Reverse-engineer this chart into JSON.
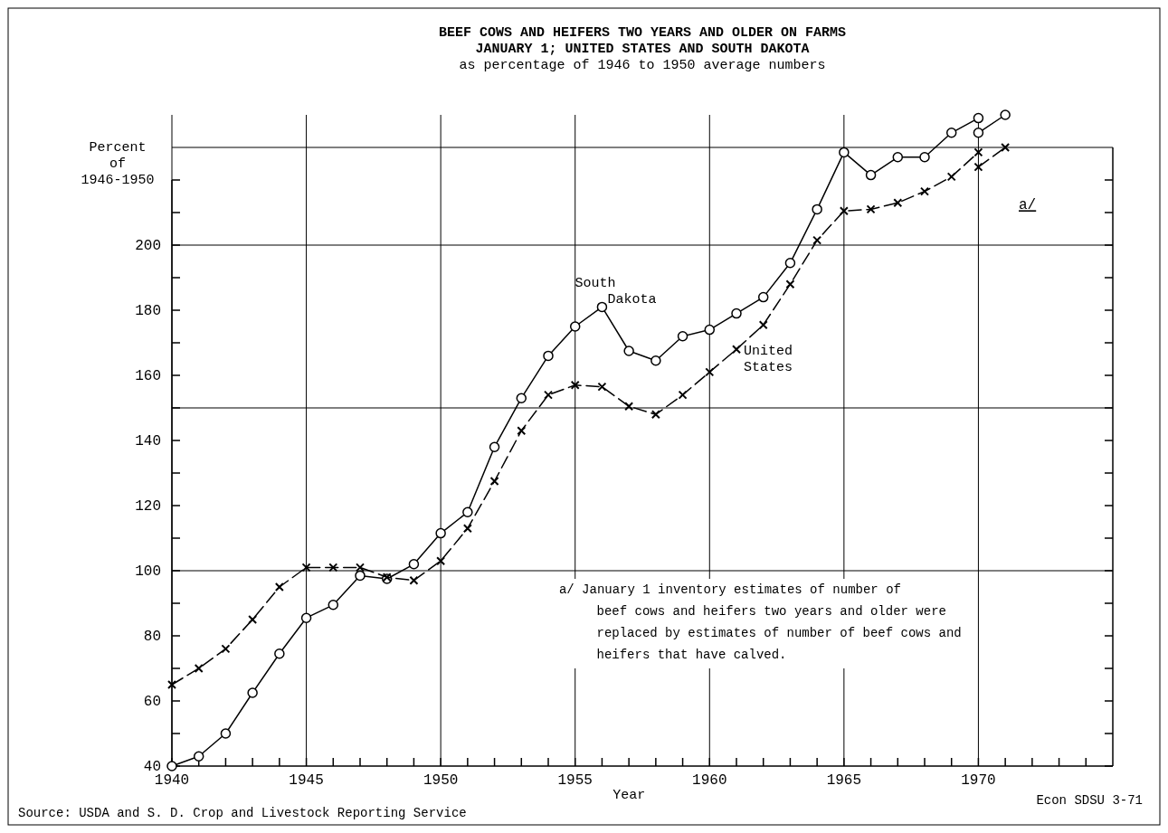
{
  "chart_data": {
    "type": "line",
    "title": "BEEF COWS AND HEIFERS TWO YEARS AND OLDER ON FARMS\nJANUARY 1; UNITED STATES AND SOUTH DAKOTA",
    "subtitle": "as percentage of 1946 to 1950 average numbers",
    "xlabel": "Year",
    "ylabel": "Percent\nof\n1946-1950",
    "xlim": [
      1940,
      1975
    ],
    "xticks": [
      1940,
      {
        "value": 1941,
        "label": null
      },
      {
        "value": 1942,
        "label": null
      },
      {
        "value": 1943,
        "label": null
      },
      {
        "value": 1944,
        "label": null
      },
      1945,
      {
        "value": 1946,
        "label": null
      },
      {
        "value": 1947,
        "label": null
      },
      {
        "value": 1948,
        "label": null
      },
      {
        "value": 1949,
        "label": null
      },
      1950,
      {
        "value": 1951,
        "label": null
      },
      {
        "value": 1952,
        "label": null
      },
      {
        "value": 1953,
        "label": null
      },
      {
        "value": 1954,
        "label": null
      },
      1955,
      {
        "value": 1956,
        "label": null
      },
      {
        "value": 1957,
        "label": null
      },
      {
        "value": 1958,
        "label": null
      },
      {
        "value": 1959,
        "label": null
      },
      1960,
      {
        "value": 1961,
        "label": null
      },
      {
        "value": 1962,
        "label": null
      },
      {
        "value": 1963,
        "label": null
      },
      {
        "value": 1964,
        "label": null
      },
      1965,
      {
        "value": 1966,
        "label": null
      },
      {
        "value": 1967,
        "label": null
      },
      {
        "value": 1968,
        "label": null
      },
      {
        "value": 1969,
        "label": null
      },
      1970,
      {
        "value": 1971,
        "label": null
      },
      {
        "value": 1972,
        "label": null
      },
      {
        "value": 1973,
        "label": null
      },
      {
        "value": 1974,
        "label": null
      }
    ],
    "ylim": [
      40,
      240
    ],
    "yticks": [
      40,
      {
        "value": 50,
        "label": null
      },
      60,
      {
        "value": 70,
        "label": null
      },
      80,
      {
        "value": 90,
        "label": null
      },
      100,
      {
        "value": 110,
        "label": null
      },
      120,
      {
        "value": 130,
        "label": null
      },
      140,
      {
        "value": 150,
        "label": null
      },
      160,
      {
        "value": 170,
        "label": null
      },
      180,
      {
        "value": 190,
        "label": null
      },
      200,
      {
        "value": 210,
        "label": null
      },
      {
        "value": 220,
        "label": null
      }
    ],
    "grid": "x",
    "ref_lines": [
      {
        "axis": "y",
        "value": 100,
        "color": "#000000"
      },
      {
        "axis": "y",
        "value": 150,
        "color": "#000000"
      },
      {
        "axis": "y",
        "value": 200,
        "color": "#000000"
      },
      {
        "axis": "y",
        "value": 230,
        "color": "#000000"
      }
    ],
    "series": [
      {
        "name": "South Dakota",
        "color": "#000000",
        "marker": "circle",
        "line_style": "solid",
        "x": [
          1940,
          1941,
          1942,
          1943,
          1944,
          1945,
          1946,
          1947,
          1948,
          1949,
          1950,
          1951,
          1952,
          1953,
          1954,
          1955,
          1956,
          1957,
          1958,
          1959,
          1960,
          1961,
          1962,
          1963,
          1964,
          1965,
          1966,
          1967,
          1968,
          1969,
          1970
        ],
        "values": [
          40,
          43,
          50,
          62.5,
          74.5,
          85.5,
          89.5,
          98.5,
          97.5,
          102,
          111.5,
          118,
          138,
          153,
          166,
          175,
          181,
          167.5,
          164.5,
          172,
          174,
          179,
          184,
          194.5,
          211,
          228.5,
          221.5,
          227,
          227,
          234.5,
          239
        ]
      },
      {
        "color": "#000000",
        "marker": "circle",
        "line_style": "solid",
        "x": [
          1970,
          1971
        ],
        "values": [
          234.5,
          240
        ]
      },
      {
        "name": "United States",
        "color": "#000000",
        "marker": "cross",
        "line_style": "dashed",
        "x": [
          1940,
          1941,
          1942,
          1943,
          1944,
          1945,
          1946,
          1947,
          1948,
          1949,
          1950,
          1951,
          1952,
          1953,
          1954,
          1955,
          1956,
          1957,
          1958,
          1959,
          1960,
          1961,
          1962,
          1963,
          1964,
          1965,
          1966,
          1967,
          1968,
          1969,
          1970
        ],
        "values": [
          65,
          70,
          76,
          85,
          95,
          101,
          101,
          101,
          98,
          97,
          103,
          113,
          127.5,
          143,
          154,
          157,
          156.5,
          150.5,
          148,
          154,
          161,
          168,
          175.5,
          188,
          201.5,
          210.5,
          211,
          213,
          216.5,
          221,
          228.5
        ]
      },
      {
        "color": "#000000",
        "marker": "cross",
        "line_style": "dashed",
        "x": [
          1970,
          1971
        ],
        "values": [
          224,
          230
        ]
      }
    ],
    "annotations": [
      "a/",
      "a/  January 1 inventory estimates of number of beef cows and heifers two years and older were replaced by estimates of number of beef cows and heifers that have calved.",
      "Source:  USDA and S. D. Crop and Livestock Reporting Service",
      "Econ SDSU 3-71"
    ]
  }
}
